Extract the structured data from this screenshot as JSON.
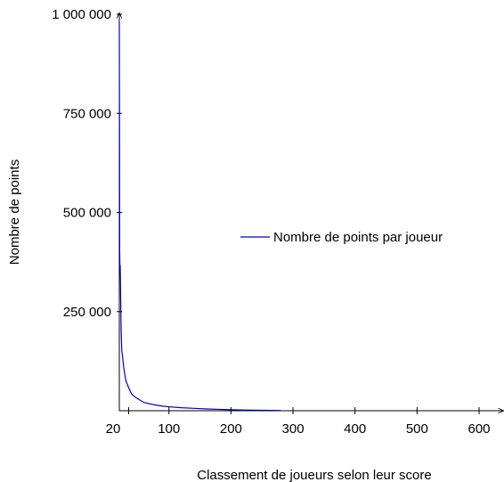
{
  "chart_data": {
    "type": "line",
    "title": "",
    "xlabel": "Classement de joueurs selon leur score",
    "ylabel": "Nombre de points",
    "xlim": [
      20,
      640
    ],
    "ylim": [
      0,
      1000000
    ],
    "x_ticks": [
      {
        "value": 20,
        "label": "20"
      },
      {
        "value": 100,
        "label": "100"
      },
      {
        "value": 200,
        "label": "200"
      },
      {
        "value": 300,
        "label": "300"
      },
      {
        "value": 400,
        "label": "400"
      },
      {
        "value": 500,
        "label": "500"
      },
      {
        "value": 600,
        "label": "600"
      }
    ],
    "x_minor_ticks": [
      35
    ],
    "y_ticks": [
      {
        "value": 250000,
        "label": "250 000"
      },
      {
        "value": 500000,
        "label": "500 000"
      },
      {
        "value": 750000,
        "label": "750 000"
      },
      {
        "value": 1000000,
        "label": "1 000 000"
      }
    ],
    "grid": false,
    "legend_position": "right",
    "series": [
      {
        "name": "Nombre de points par joueur",
        "color": "#0000cc",
        "x": [
          20,
          20.3,
          20.6,
          21,
          21.4,
          21.8,
          22.2,
          22.6,
          23,
          24,
          25,
          26,
          27,
          28,
          29,
          30,
          32,
          34,
          36,
          38,
          40,
          45,
          50,
          55,
          60,
          70,
          80,
          90,
          100,
          120,
          140,
          160,
          180,
          200,
          220,
          250,
          280
        ],
        "y": [
          980000,
          720000,
          400000,
          360000,
          366000,
          330000,
          280000,
          240000,
          200000,
          150000,
          140000,
          125000,
          110000,
          100000,
          90000,
          80000,
          70000,
          62000,
          55000,
          48000,
          42000,
          35000,
          30000,
          25000,
          21000,
          17000,
          14000,
          11500,
          10000,
          7500,
          6000,
          4500,
          3500,
          2500,
          1800,
          1200,
          700
        ]
      }
    ]
  }
}
